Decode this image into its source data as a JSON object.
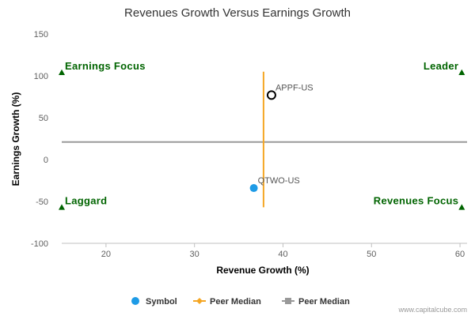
{
  "chart_data": {
    "type": "scatter",
    "title": "Revenues Growth Versus Earnings Growth",
    "xlabel": "Revenue Growth (%)",
    "ylabel": "Earnings Growth (%)",
    "xlim": [
      15,
      60.8
    ],
    "ylim": [
      -100,
      150
    ],
    "xticks": [
      20,
      30,
      40,
      50,
      60
    ],
    "yticks": [
      -100,
      -50,
      0,
      50,
      100,
      150
    ],
    "grid": false,
    "points": [
      {
        "label": "APPF-US",
        "x": 38.7,
        "y": 77,
        "style": "hollow",
        "color": "#000000"
      },
      {
        "label": "QTWO-US",
        "x": 36.7,
        "y": -34,
        "style": "filled",
        "color": "#1e9be6"
      }
    ],
    "peer_median_x": {
      "value": 37.8,
      "y_from": -57,
      "y_to": 105,
      "color": "#f5a623"
    },
    "peer_median_y": {
      "value": 21,
      "color": "#999999"
    },
    "quadrants": [
      {
        "text": "Earnings Focus",
        "corner": "top-left",
        "marker_x": 15,
        "marker_y": 104
      },
      {
        "text": "Leader",
        "corner": "top-right",
        "marker_x": 60.2,
        "marker_y": 104
      },
      {
        "text": "Laggard",
        "corner": "bottom-left",
        "marker_x": 15,
        "marker_y": -57
      },
      {
        "text": "Revenues Focus",
        "corner": "bottom-right",
        "marker_x": 60.2,
        "marker_y": -57
      }
    ],
    "quadrant_color": "#006400",
    "legend": {
      "placement": "bottom-center",
      "items": [
        {
          "name": "Symbol",
          "marker": "circle",
          "color": "#1e9be6"
        },
        {
          "name": "Peer Median",
          "marker": "diamond-line",
          "color": "#f5a623"
        },
        {
          "name": "Peer Median",
          "marker": "square-line",
          "color": "#999999"
        }
      ]
    }
  },
  "credit": "www.capitalcube.com"
}
